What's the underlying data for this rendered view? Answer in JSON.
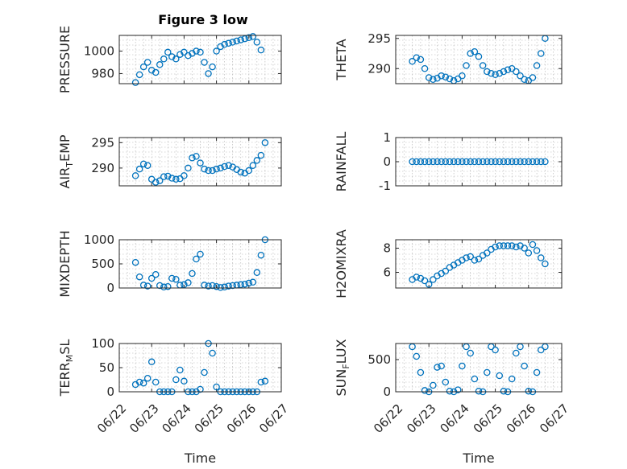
{
  "figure": {
    "title": "Figure 3 low",
    "marker_color": "#0072BD"
  },
  "chart_data": [
    {
      "type": "scatter",
      "marker": "open-circle",
      "title": "Figure 3 low",
      "ylabel": "PRESSURE",
      "ylabel_sub": "",
      "ylabel_rest": "",
      "xlim": [
        "06/22",
        "06/27"
      ],
      "ylim": [
        971,
        1014
      ],
      "yticks": [
        980,
        1000
      ],
      "xtick_labels": [],
      "xlabel": "",
      "grid": true,
      "x": [
        "06/22 12:00",
        "06/22 15:00",
        "06/22 18:00",
        "06/22 21:00",
        "06/23 00:00",
        "06/23 03:00",
        "06/23 06:00",
        "06/23 09:00",
        "06/23 12:00",
        "06/23 15:00",
        "06/23 18:00",
        "06/23 21:00",
        "06/24 00:00",
        "06/24 03:00",
        "06/24 06:00",
        "06/24 09:00",
        "06/24 12:00",
        "06/24 15:00",
        "06/24 18:00",
        "06/24 21:00",
        "06/25 00:00",
        "06/25 03:00",
        "06/25 06:00",
        "06/25 09:00",
        "06/25 12:00",
        "06/25 15:00",
        "06/25 18:00",
        "06/25 21:00",
        "06/26 00:00",
        "06/26 03:00",
        "06/26 06:00",
        "06/26 09:00"
      ],
      "y": [
        972,
        979,
        986,
        990,
        983,
        981,
        988,
        993,
        999,
        995,
        993,
        997,
        999,
        996,
        998,
        1000,
        999,
        990,
        980,
        986,
        1000,
        1004,
        1006,
        1007,
        1008,
        1009,
        1010,
        1011,
        1012,
        1013,
        1008,
        1001
      ]
    },
    {
      "type": "scatter",
      "marker": "open-circle",
      "ylabel": "THETA",
      "ylabel_sub": "",
      "ylabel_rest": "",
      "xlim": [
        "06/22",
        "06/27"
      ],
      "ylim": [
        287.5,
        295.5
      ],
      "yticks": [
        290,
        295
      ],
      "xtick_labels": [],
      "xlabel": "",
      "grid": true,
      "x": [
        "06/22 12:00",
        "06/22 15:00",
        "06/22 18:00",
        "06/22 21:00",
        "06/23 00:00",
        "06/23 03:00",
        "06/23 06:00",
        "06/23 09:00",
        "06/23 12:00",
        "06/23 15:00",
        "06/23 18:00",
        "06/23 21:00",
        "06/24 00:00",
        "06/24 03:00",
        "06/24 06:00",
        "06/24 09:00",
        "06/24 12:00",
        "06/24 15:00",
        "06/24 18:00",
        "06/24 21:00",
        "06/25 00:00",
        "06/25 03:00",
        "06/25 06:00",
        "06/25 09:00",
        "06/25 12:00",
        "06/25 15:00",
        "06/25 18:00",
        "06/25 21:00",
        "06/26 00:00",
        "06/26 03:00",
        "06/26 06:00",
        "06/26 09:00",
        "06/26 12:00"
      ],
      "y": [
        291.2,
        291.8,
        291.5,
        290.0,
        288.5,
        288.2,
        288.4,
        288.8,
        288.6,
        288.3,
        288.0,
        288.3,
        288.8,
        290.5,
        292.5,
        292.8,
        292.0,
        290.5,
        289.5,
        289.2,
        289.0,
        289.2,
        289.5,
        289.8,
        290.0,
        289.5,
        288.8,
        288.2,
        288.0,
        288.5,
        290.5,
        292.5,
        295.0
      ]
    },
    {
      "type": "scatter",
      "marker": "open-circle",
      "ylabel": "AIR",
      "ylabel_sub": "T",
      "ylabel_rest": "EMP",
      "xlim": [
        "06/22",
        "06/27"
      ],
      "ylim": [
        286.5,
        296
      ],
      "yticks": [
        290,
        295
      ],
      "xtick_labels": [],
      "xlabel": "",
      "grid": true,
      "x": [
        "06/22 12:00",
        "06/22 15:00",
        "06/22 18:00",
        "06/22 21:00",
        "06/23 00:00",
        "06/23 03:00",
        "06/23 06:00",
        "06/23 09:00",
        "06/23 12:00",
        "06/23 15:00",
        "06/23 18:00",
        "06/23 21:00",
        "06/24 00:00",
        "06/24 03:00",
        "06/24 06:00",
        "06/24 09:00",
        "06/24 12:00",
        "06/24 15:00",
        "06/24 18:00",
        "06/24 21:00",
        "06/25 00:00",
        "06/25 03:00",
        "06/25 06:00",
        "06/25 09:00",
        "06/25 12:00",
        "06/25 15:00",
        "06/25 18:00",
        "06/25 21:00",
        "06/26 00:00",
        "06/26 03:00",
        "06/26 06:00",
        "06/26 09:00",
        "06/26 12:00"
      ],
      "y": [
        288.5,
        289.8,
        290.8,
        290.5,
        287.8,
        287.2,
        287.5,
        288.3,
        288.4,
        288.0,
        287.8,
        287.9,
        288.5,
        290.0,
        292.0,
        292.3,
        291.0,
        289.8,
        289.5,
        289.5,
        289.8,
        290.0,
        290.3,
        290.5,
        290.2,
        289.7,
        289.2,
        289.0,
        289.5,
        290.5,
        291.5,
        292.5,
        295.0
      ]
    },
    {
      "type": "scatter",
      "marker": "open-circle",
      "ylabel": "RAINFALL",
      "ylabel_sub": "",
      "ylabel_rest": "",
      "xlim": [
        "06/22",
        "06/27"
      ],
      "ylim": [
        -1,
        1
      ],
      "yticks": [
        -1,
        0,
        1
      ],
      "xtick_labels": [],
      "xlabel": "",
      "grid": true,
      "x": [
        "06/22 12:00",
        "06/22 15:00",
        "06/22 18:00",
        "06/22 21:00",
        "06/23 00:00",
        "06/23 03:00",
        "06/23 06:00",
        "06/23 09:00",
        "06/23 12:00",
        "06/23 15:00",
        "06/23 18:00",
        "06/23 21:00",
        "06/24 00:00",
        "06/24 03:00",
        "06/24 06:00",
        "06/24 09:00",
        "06/24 12:00",
        "06/24 15:00",
        "06/24 18:00",
        "06/24 21:00",
        "06/25 00:00",
        "06/25 03:00",
        "06/25 06:00",
        "06/25 09:00",
        "06/25 12:00",
        "06/25 15:00",
        "06/25 18:00",
        "06/25 21:00",
        "06/26 00:00",
        "06/26 03:00",
        "06/26 06:00",
        "06/26 09:00",
        "06/26 12:00"
      ],
      "y": [
        0,
        0,
        0,
        0,
        0,
        0,
        0,
        0,
        0,
        0,
        0,
        0,
        0,
        0,
        0,
        0,
        0,
        0,
        0,
        0,
        0,
        0,
        0,
        0,
        0,
        0,
        0,
        0,
        0,
        0,
        0,
        0,
        0
      ]
    },
    {
      "type": "scatter",
      "marker": "open-circle",
      "ylabel": "MIXDEPTH",
      "ylabel_sub": "",
      "ylabel_rest": "",
      "xlim": [
        "06/22",
        "06/27"
      ],
      "ylim": [
        0,
        1000
      ],
      "yticks": [
        0,
        500,
        1000
      ],
      "xtick_labels": [],
      "xlabel": "",
      "grid": true,
      "x": [
        "06/22 12:00",
        "06/22 15:00",
        "06/22 18:00",
        "06/22 21:00",
        "06/23 00:00",
        "06/23 03:00",
        "06/23 06:00",
        "06/23 09:00",
        "06/23 12:00",
        "06/23 15:00",
        "06/23 18:00",
        "06/23 21:00",
        "06/24 00:00",
        "06/24 03:00",
        "06/24 06:00",
        "06/24 09:00",
        "06/24 12:00",
        "06/24 15:00",
        "06/24 18:00",
        "06/24 21:00",
        "06/25 00:00",
        "06/25 03:00",
        "06/25 06:00",
        "06/25 09:00",
        "06/25 12:00",
        "06/25 15:00",
        "06/25 18:00",
        "06/25 21:00",
        "06/26 00:00",
        "06/26 03:00",
        "06/26 06:00",
        "06/26 09:00",
        "06/26 12:00"
      ],
      "y": [
        530,
        230,
        60,
        40,
        200,
        280,
        50,
        20,
        30,
        200,
        180,
        60,
        70,
        110,
        300,
        600,
        700,
        60,
        40,
        50,
        30,
        10,
        20,
        40,
        50,
        60,
        70,
        80,
        100,
        120,
        320,
        680,
        1000
      ]
    },
    {
      "type": "scatter",
      "marker": "open-circle",
      "ylabel": "H2OMIXRA",
      "ylabel_sub": "",
      "ylabel_rest": "",
      "xlim": [
        "06/22",
        "06/27"
      ],
      "ylim": [
        4.7,
        8.7
      ],
      "yticks": [
        6,
        8
      ],
      "xtick_labels": [],
      "xlabel": "",
      "grid": true,
      "x": [
        "06/22 12:00",
        "06/22 15:00",
        "06/22 18:00",
        "06/22 21:00",
        "06/23 00:00",
        "06/23 03:00",
        "06/23 06:00",
        "06/23 09:00",
        "06/23 12:00",
        "06/23 15:00",
        "06/23 18:00",
        "06/23 21:00",
        "06/24 00:00",
        "06/24 03:00",
        "06/24 06:00",
        "06/24 09:00",
        "06/24 12:00",
        "06/24 15:00",
        "06/24 18:00",
        "06/24 21:00",
        "06/25 00:00",
        "06/25 03:00",
        "06/25 06:00",
        "06/25 09:00",
        "06/25 12:00",
        "06/25 15:00",
        "06/25 18:00",
        "06/25 21:00",
        "06/26 00:00",
        "06/26 03:00",
        "06/26 06:00",
        "06/26 09:00",
        "06/26 12:00"
      ],
      "y": [
        5.4,
        5.6,
        5.5,
        5.3,
        5.0,
        5.4,
        5.7,
        5.9,
        6.1,
        6.4,
        6.6,
        6.8,
        7.0,
        7.2,
        7.3,
        7.0,
        7.1,
        7.4,
        7.6,
        7.9,
        8.1,
        8.2,
        8.2,
        8.2,
        8.2,
        8.1,
        8.2,
        8.0,
        7.6,
        8.3,
        7.8,
        7.2,
        6.7
      ]
    },
    {
      "type": "scatter",
      "marker": "open-circle",
      "ylabel": "TERR",
      "ylabel_sub": "M",
      "ylabel_rest": "SL",
      "xlim": [
        "06/22",
        "06/27"
      ],
      "ylim": [
        0,
        100
      ],
      "yticks": [
        0,
        50,
        100
      ],
      "xtick_labels": [
        "06/22",
        "06/23",
        "06/24",
        "06/25",
        "06/26",
        "06/27"
      ],
      "xlabel": "Time",
      "grid": true,
      "x": [
        "06/22 12:00",
        "06/22 15:00",
        "06/22 18:00",
        "06/22 21:00",
        "06/23 00:00",
        "06/23 03:00",
        "06/23 06:00",
        "06/23 09:00",
        "06/23 12:00",
        "06/23 15:00",
        "06/23 18:00",
        "06/23 21:00",
        "06/24 00:00",
        "06/24 03:00",
        "06/24 06:00",
        "06/24 09:00",
        "06/24 12:00",
        "06/24 15:00",
        "06/24 18:00",
        "06/24 21:00",
        "06/25 00:00",
        "06/25 03:00",
        "06/25 06:00",
        "06/25 09:00",
        "06/25 12:00",
        "06/25 15:00",
        "06/25 18:00",
        "06/25 21:00",
        "06/26 00:00",
        "06/26 03:00",
        "06/26 06:00",
        "06/26 09:00",
        "06/26 12:00"
      ],
      "y": [
        15,
        20,
        18,
        28,
        62,
        20,
        0,
        0,
        0,
        0,
        25,
        45,
        22,
        0,
        0,
        0,
        5,
        40,
        100,
        80,
        10,
        0,
        0,
        0,
        0,
        0,
        0,
        0,
        0,
        0,
        0,
        20,
        22
      ]
    },
    {
      "type": "scatter",
      "marker": "open-circle",
      "ylabel": "SUN",
      "ylabel_sub": "F",
      "ylabel_rest": "LUX",
      "xlim": [
        "06/22",
        "06/27"
      ],
      "ylim": [
        0,
        750
      ],
      "yticks": [
        0,
        500
      ],
      "xtick_labels": [
        "06/22",
        "06/23",
        "06/24",
        "06/25",
        "06/26",
        "06/27"
      ],
      "xlabel": "Time",
      "grid": true,
      "x": [
        "06/22 12:00",
        "06/22 15:00",
        "06/22 18:00",
        "06/22 21:00",
        "06/23 00:00",
        "06/23 03:00",
        "06/23 06:00",
        "06/23 09:00",
        "06/23 12:00",
        "06/23 15:00",
        "06/23 18:00",
        "06/23 21:00",
        "06/24 00:00",
        "06/24 03:00",
        "06/24 06:00",
        "06/24 09:00",
        "06/24 12:00",
        "06/24 15:00",
        "06/24 18:00",
        "06/24 21:00",
        "06/25 00:00",
        "06/25 03:00",
        "06/25 06:00",
        "06/25 09:00",
        "06/25 12:00",
        "06/25 15:00",
        "06/25 18:00",
        "06/25 21:00",
        "06/26 00:00",
        "06/26 03:00",
        "06/26 06:00",
        "06/26 09:00",
        "06/26 12:00"
      ],
      "y": [
        700,
        550,
        300,
        20,
        0,
        100,
        380,
        400,
        150,
        10,
        0,
        30,
        400,
        700,
        600,
        200,
        10,
        0,
        300,
        700,
        650,
        250,
        10,
        0,
        200,
        600,
        700,
        400,
        10,
        0,
        300,
        650,
        700
      ]
    }
  ]
}
